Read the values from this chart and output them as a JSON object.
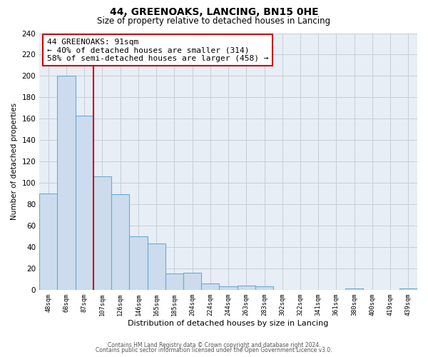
{
  "title": "44, GREENOAKS, LANCING, BN15 0HE",
  "subtitle": "Size of property relative to detached houses in Lancing",
  "xlabel": "Distribution of detached houses by size in Lancing",
  "ylabel": "Number of detached properties",
  "bar_labels": [
    "48sqm",
    "68sqm",
    "87sqm",
    "107sqm",
    "126sqm",
    "146sqm",
    "165sqm",
    "185sqm",
    "204sqm",
    "224sqm",
    "244sqm",
    "263sqm",
    "283sqm",
    "302sqm",
    "322sqm",
    "341sqm",
    "361sqm",
    "380sqm",
    "400sqm",
    "419sqm",
    "439sqm"
  ],
  "bar_heights": [
    90,
    200,
    163,
    106,
    89,
    50,
    43,
    15,
    16,
    6,
    3,
    4,
    3,
    0,
    0,
    0,
    0,
    1,
    0,
    0,
    1
  ],
  "bar_color": "#ccdcee",
  "bar_edge_color": "#6aaad4",
  "vline_x_index": 2,
  "vline_color": "#cc0000",
  "annotation_line1": "44 GREENOAKS: 91sqm",
  "annotation_line2": "← 40% of detached houses are smaller (314)",
  "annotation_line3": "58% of semi-detached houses are larger (458) →",
  "annotation_box_color": "#ffffff",
  "annotation_box_edge": "#cc0000",
  "ylim": [
    0,
    240
  ],
  "yticks": [
    0,
    20,
    40,
    60,
    80,
    100,
    120,
    140,
    160,
    180,
    200,
    220,
    240
  ],
  "footer1": "Contains HM Land Registry data © Crown copyright and database right 2024.",
  "footer2": "Contains public sector information licensed under the Open Government Licence v3.0.",
  "plot_bg_color": "#e8eef6",
  "figure_bg_color": "#ffffff",
  "grid_color": "#c8cdd6"
}
